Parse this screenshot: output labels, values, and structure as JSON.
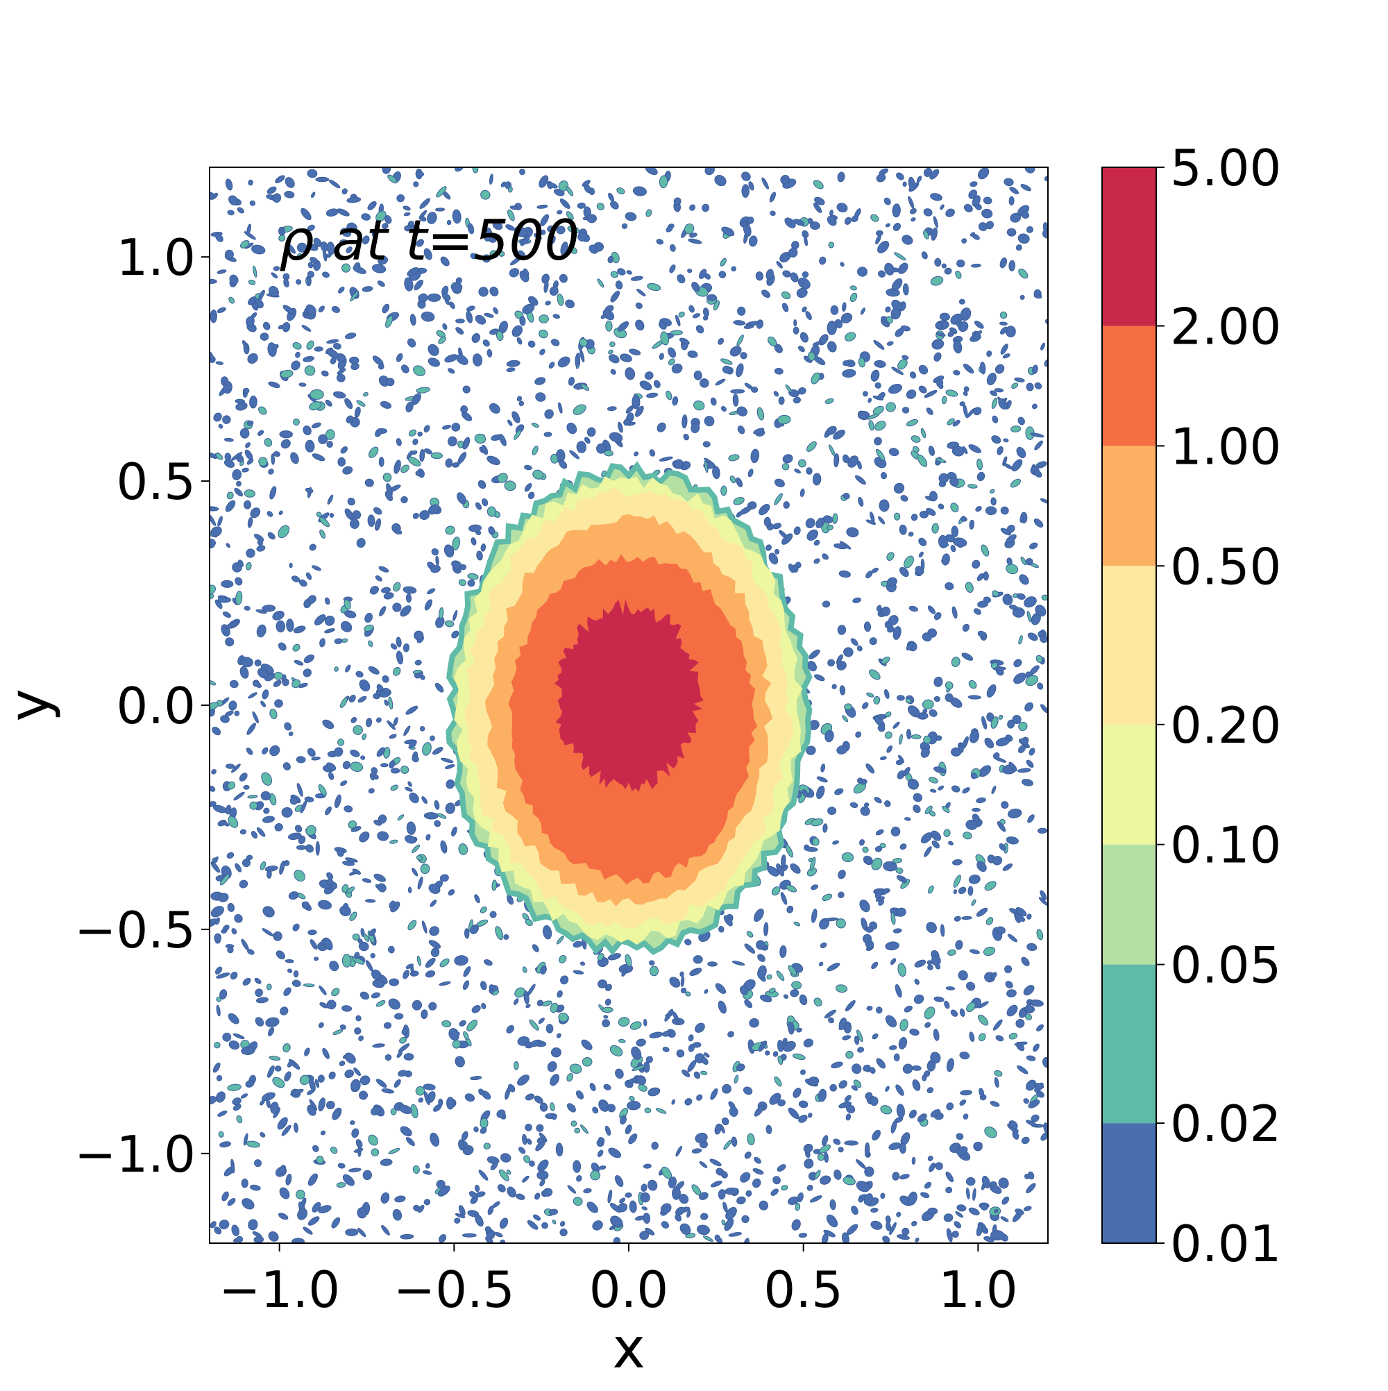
{
  "chart_data": {
    "type": "heatmap",
    "subtype": "filled-contour",
    "title": "ρ at t=500",
    "xlabel": "x",
    "ylabel": "y",
    "xlim": [
      -1.2,
      1.2
    ],
    "ylim": [
      -1.2,
      1.2
    ],
    "xticks": [
      -1.0,
      -0.5,
      0.0,
      0.5,
      1.0
    ],
    "yticks": [
      -1.0,
      -0.5,
      0.0,
      0.5,
      1.0
    ],
    "xtick_labels": [
      "−1.0",
      "−0.5",
      "0.0",
      "0.5",
      "1.0"
    ],
    "ytick_labels": [
      "−1.0",
      "−0.5",
      "0.0",
      "0.5",
      "1.0"
    ],
    "grid": false,
    "colorbar": {
      "levels": [
        0.01,
        0.02,
        0.05,
        0.1,
        0.2,
        0.5,
        1.0,
        2.0,
        5.0
      ],
      "tick_labels": [
        "0.01",
        "0.02",
        "0.05",
        "0.10",
        "0.20",
        "0.50",
        "1.00",
        "2.00",
        "5.00"
      ],
      "colors": [
        "#4a6fb0",
        "#5fbaa8",
        "#b5e0a3",
        "#edf7a0",
        "#fde8a0",
        "#fcb062",
        "#f46d43",
        "#c8294a"
      ]
    },
    "regions": [
      {
        "level_index": 2,
        "cx": 0.0,
        "cy": -0.01,
        "rx": 0.51,
        "ry": 0.53
      },
      {
        "level_index": 3,
        "cx": 0.0,
        "cy": -0.01,
        "rx": 0.49,
        "ry": 0.51
      },
      {
        "level_index": 4,
        "cx": 0.0,
        "cy": -0.01,
        "rx": 0.46,
        "ry": 0.485
      },
      {
        "level_index": 5,
        "cx": 0.0,
        "cy": -0.01,
        "rx": 0.4,
        "ry": 0.43
      },
      {
        "level_index": 6,
        "cx": 0.01,
        "cy": -0.03,
        "rx": 0.35,
        "ry": 0.36
      },
      {
        "level_index": 7,
        "cx": 0.0,
        "cy": 0.02,
        "rx": 0.2,
        "ry": 0.2
      }
    ],
    "background_speckle_levels": [
      0,
      1
    ]
  }
}
